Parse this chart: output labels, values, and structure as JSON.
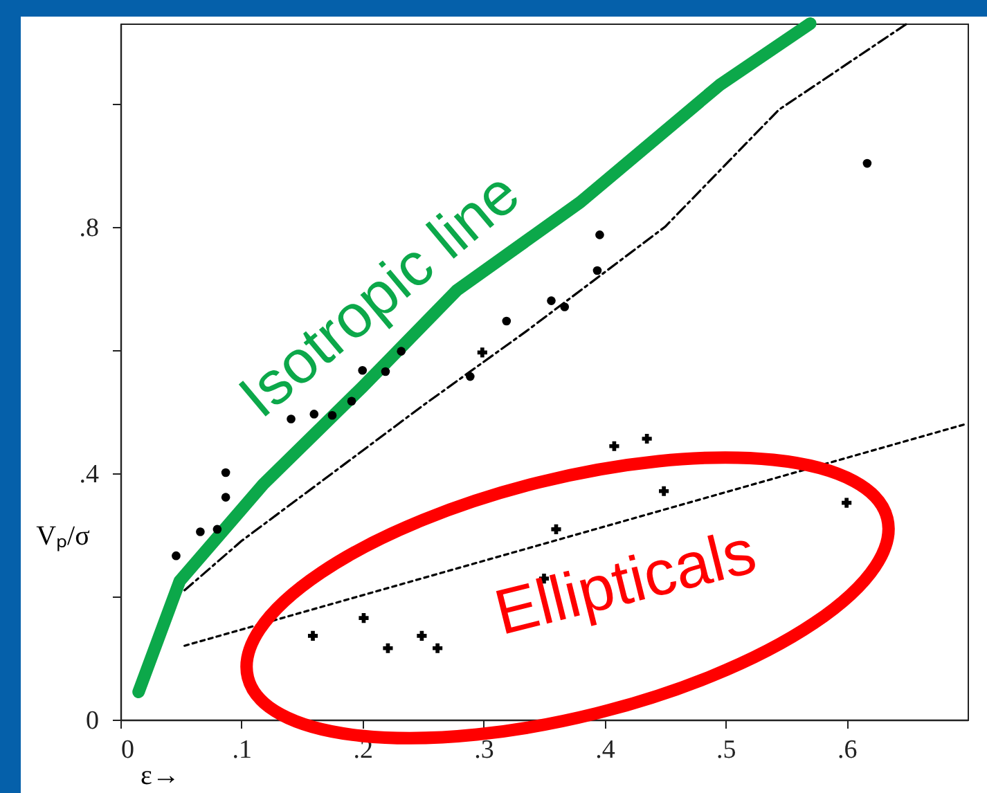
{
  "chart_data": {
    "type": "scatter",
    "xlabel": "ε→",
    "ylabel": "Vₚ/σ",
    "xlim": [
      0,
      0.7
    ],
    "ylim": [
      0,
      1.13
    ],
    "xticks": [
      0,
      {
        "value": 0.1,
        "label": ".1"
      },
      {
        "value": 0.2,
        "label": ".2"
      },
      {
        "value": 0.3,
        "label": ".3"
      },
      {
        "value": 0.4,
        "label": ".4"
      },
      {
        "value": 0.5,
        "label": ".5"
      },
      {
        "value": 0.6,
        "label": ".6"
      }
    ],
    "yticks": [
      0,
      {
        "value": 0.2,
        "label": null
      },
      {
        "value": 0.4,
        "label": ".4"
      },
      {
        "value": 0.6,
        "label": null
      },
      {
        "value": 0.8,
        "label": ".8"
      },
      {
        "value": 1.0,
        "label": null
      }
    ],
    "grid": false,
    "annotations": [
      "Ellipticals"
    ],
    "series": [
      {
        "type": "line",
        "color": "#000000",
        "line_style": "dashed",
        "x": [
          0.053,
          0.1,
          0.186,
          0.25,
          0.335,
          0.45,
          0.544,
          0.65
        ],
        "values": [
          0.21,
          0.29,
          0.416,
          0.51,
          0.63,
          0.8,
          0.99,
          1.13
        ]
      },
      {
        "type": "line",
        "color": "#000000",
        "line_style": "dotted",
        "x": [
          0.053,
          0.697
        ],
        "values": [
          0.12,
          0.479
        ]
      },
      {
        "color": "#000000",
        "marker": "circle",
        "x": [
          0.046,
          0.066,
          0.08,
          0.087,
          0.087,
          0.141,
          0.16,
          0.175,
          0.191,
          0.2,
          0.219,
          0.232,
          0.289,
          0.319,
          0.367,
          0.356,
          0.394,
          0.396,
          0.617
        ],
        "values": [
          0.266,
          0.305,
          0.309,
          0.361,
          0.401,
          0.488,
          0.496,
          0.494,
          0.517,
          0.567,
          0.565,
          0.598,
          0.557,
          0.647,
          0.67,
          0.68,
          0.729,
          0.787,
          0.903
        ]
      },
      {
        "color": "#000000",
        "marker": "cross",
        "x": [
          0.299,
          0.408,
          0.435,
          0.449,
          0.6,
          0.36,
          0.35,
          0.201,
          0.159,
          0.221,
          0.249,
          0.262
        ],
        "values": [
          0.596,
          0.444,
          0.456,
          0.371,
          0.352,
          0.309,
          0.229,
          0.165,
          0.136,
          0.116,
          0.136,
          0.116
        ]
      },
      {
        "type": "line",
        "name": "Isotropic line",
        "color": "#0ca84a",
        "line_style": "solid",
        "x": [
          0.015,
          0.049,
          0.118,
          0.2,
          0.278,
          0.38,
          0.495,
          0.57
        ],
        "values": [
          0.045,
          0.225,
          0.382,
          0.54,
          0.697,
          0.84,
          1.03,
          1.13
        ]
      }
    ]
  }
}
